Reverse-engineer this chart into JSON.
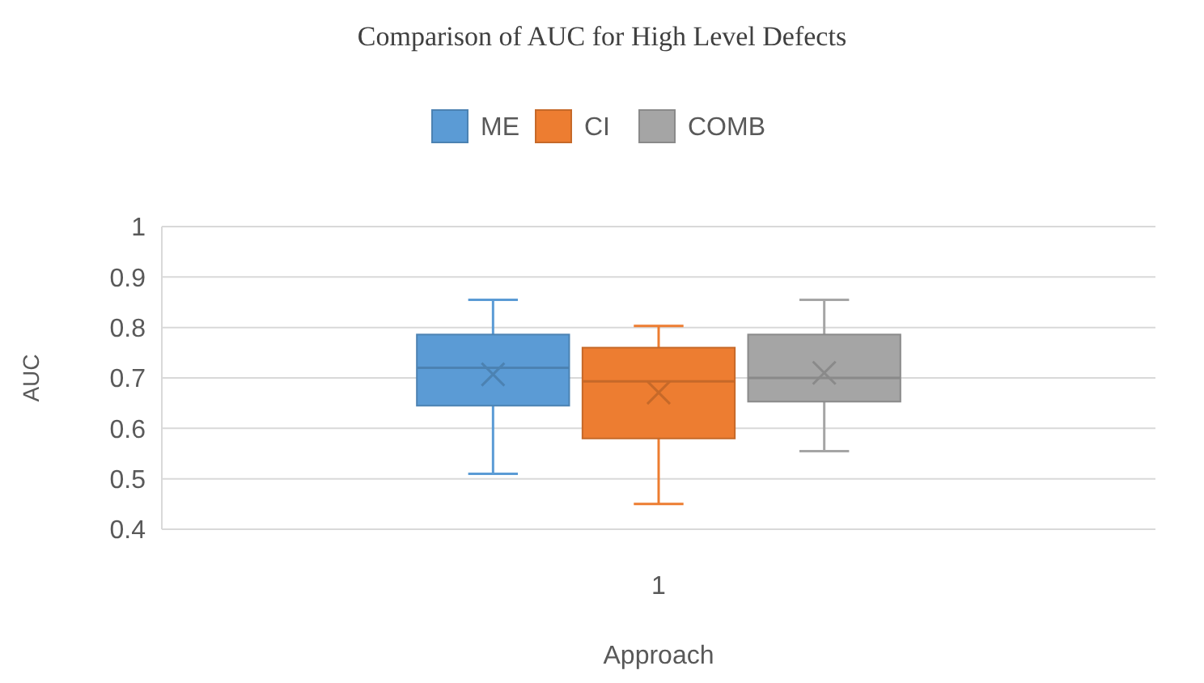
{
  "chart_data": {
    "type": "box",
    "title": "Comparison of AUC for High Level Defects",
    "xlabel": "Approach",
    "ylabel": "AUC",
    "categories": [
      "1"
    ],
    "series": [
      {
        "name": "ME",
        "color": "#5b9bd5",
        "boxes": [
          {
            "low": 0.51,
            "q1": 0.645,
            "median": 0.72,
            "q3": 0.786,
            "high": 0.855,
            "mean": 0.707
          }
        ]
      },
      {
        "name": "CI",
        "color": "#ed7d31",
        "boxes": [
          {
            "low": 0.45,
            "q1": 0.58,
            "median": 0.693,
            "q3": 0.76,
            "high": 0.803,
            "mean": 0.671
          }
        ]
      },
      {
        "name": "COMB",
        "color": "#a5a5a5",
        "boxes": [
          {
            "low": 0.555,
            "q1": 0.653,
            "median": 0.7,
            "q3": 0.786,
            "high": 0.855,
            "mean": 0.71
          }
        ]
      }
    ],
    "ylim": [
      0.4,
      1
    ],
    "yticks": [
      0.4,
      0.5,
      0.6,
      0.7,
      0.8,
      0.9,
      1
    ],
    "grid": "y",
    "legend": "top",
    "marker": "cross"
  }
}
